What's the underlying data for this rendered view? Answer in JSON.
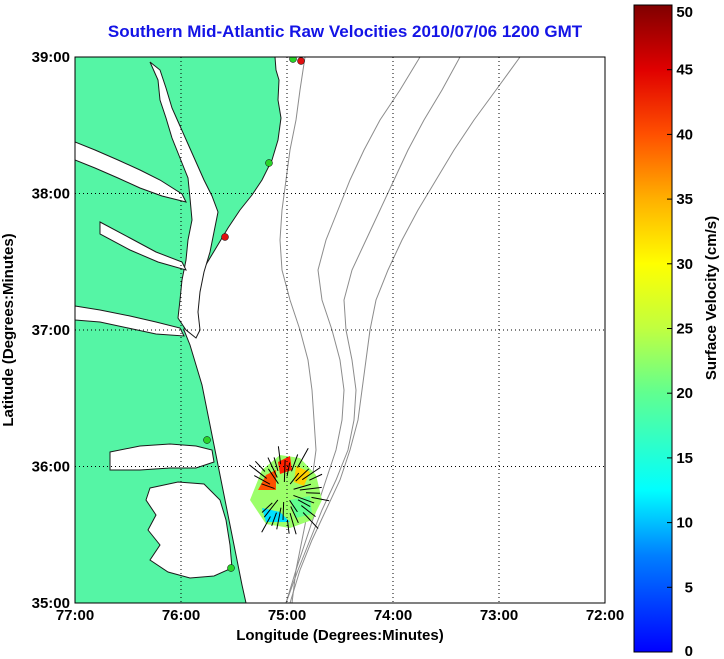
{
  "title": "Southern Mid-Atlantic Raw Velocities 2010/07/06 1200 GMT",
  "xaxis": {
    "label": "Longitude (Degrees:Minutes)",
    "ticks": [
      "77:00",
      "76:00",
      "75:00",
      "74:00",
      "73:00",
      "72:00"
    ]
  },
  "yaxis": {
    "label": "Latitude (Degrees:Minutes)",
    "ticks": [
      "39:00",
      "38:00",
      "37:00",
      "36:00",
      "35:00"
    ]
  },
  "colorbar": {
    "label": "Surface Velocity (cm/s)",
    "ticks": [
      "50",
      "45",
      "40",
      "35",
      "30",
      "25",
      "20",
      "15",
      "10",
      "5",
      "0"
    ],
    "min": 0,
    "max": 50
  },
  "colors": {
    "land": "#55f5a5",
    "title": "#1414e6",
    "bathymetry": "#8c8c8c",
    "station_active": "#2ad42a",
    "station_inactive": "#e01010"
  }
}
